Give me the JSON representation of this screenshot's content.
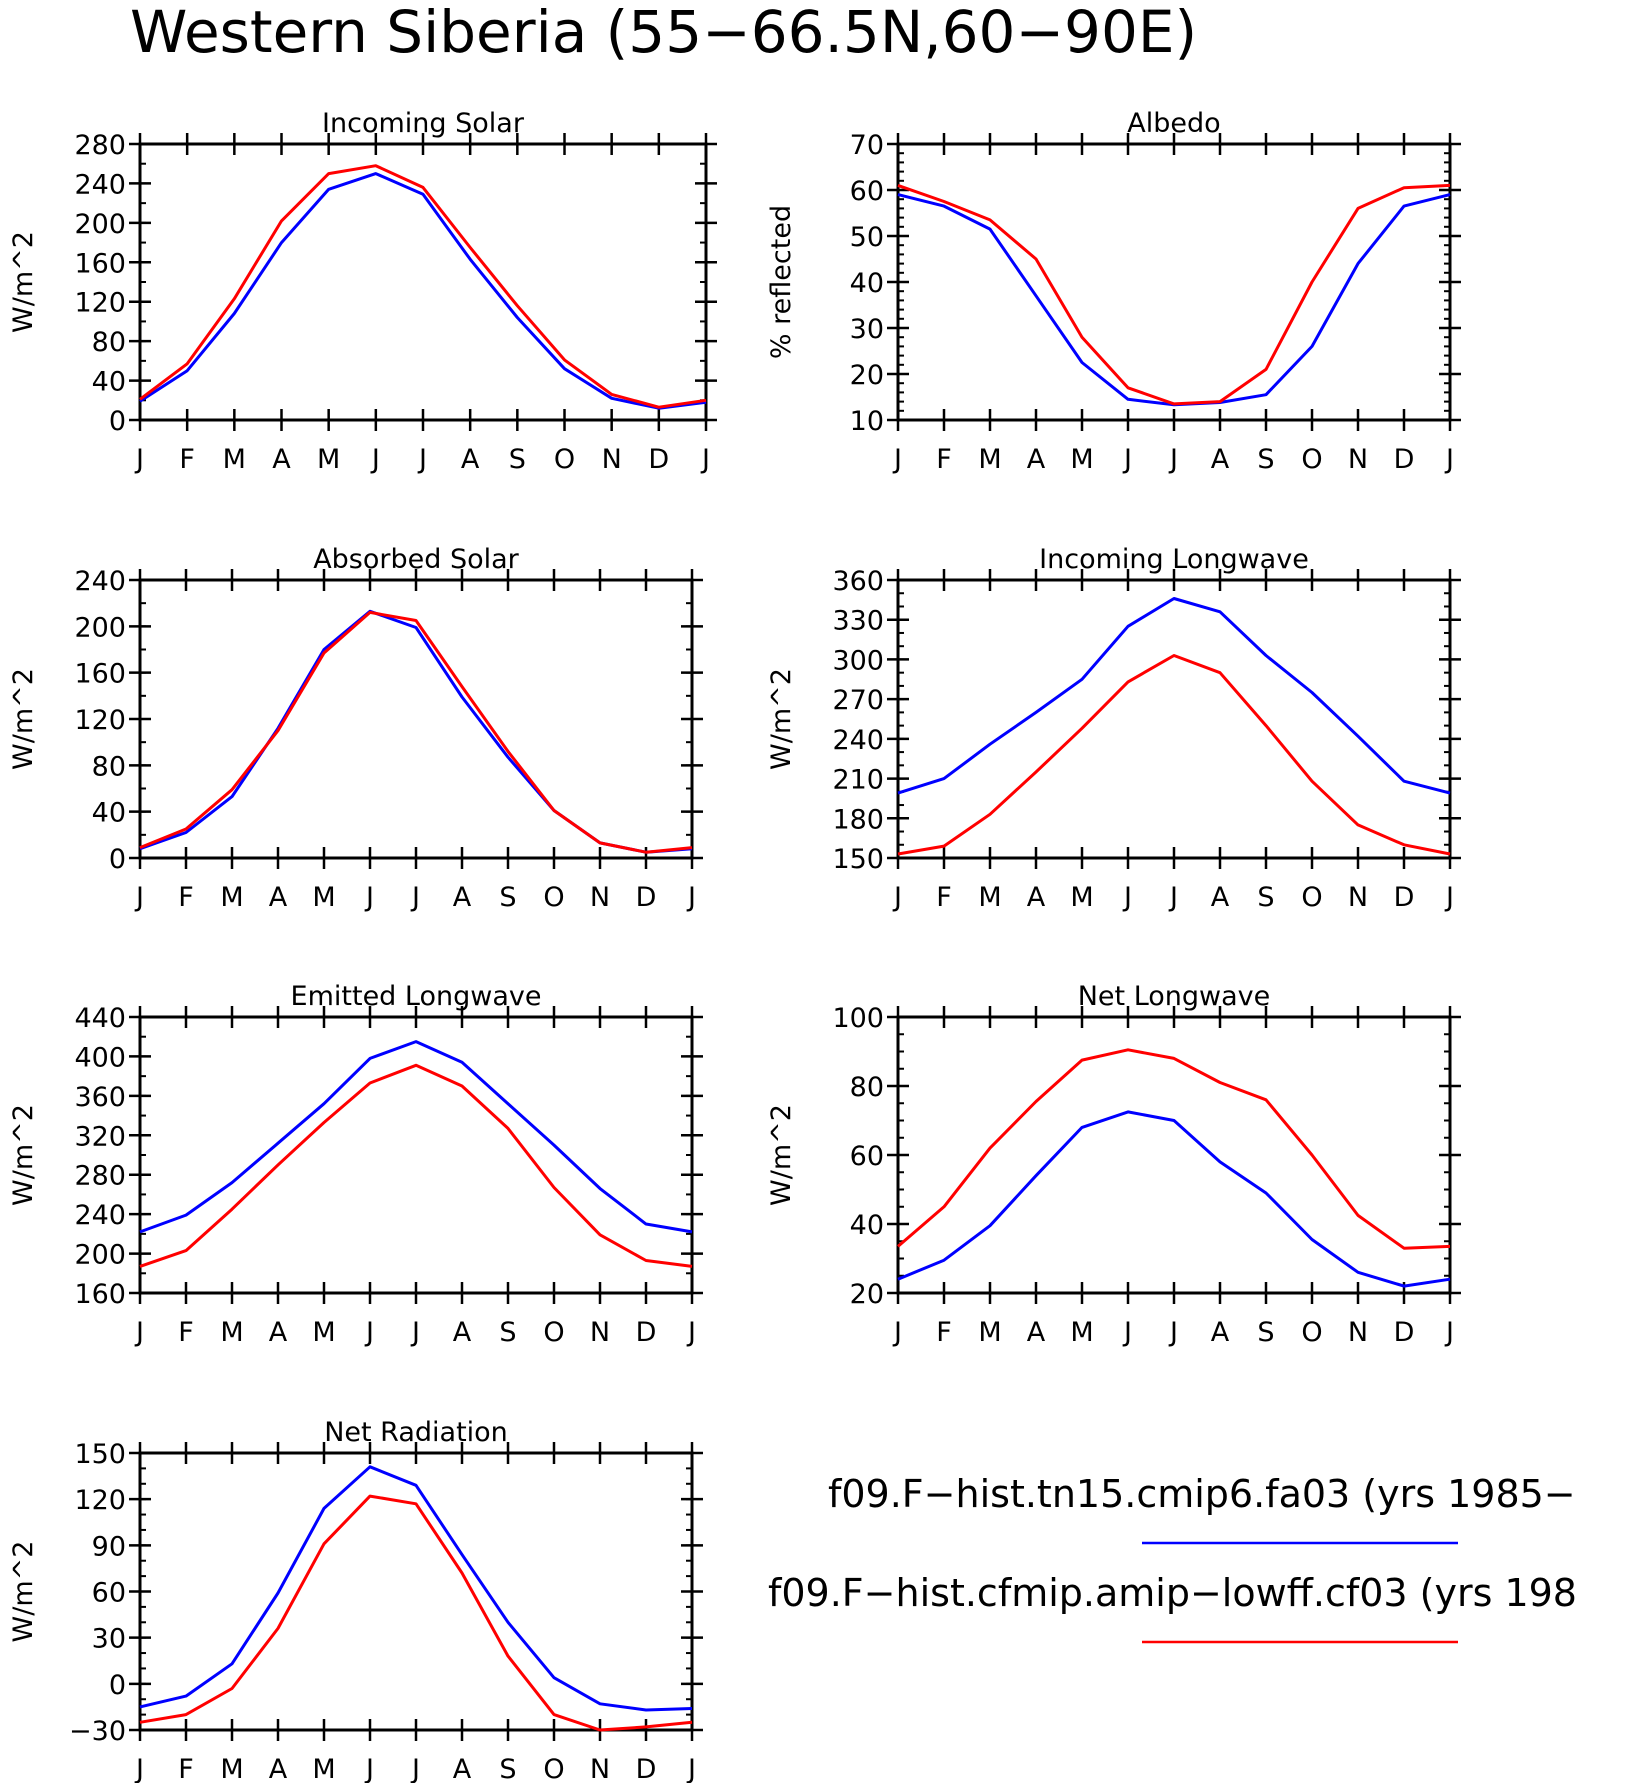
{
  "title": "Western Siberia (55−66.5N,60−90E)",
  "series_style": [
    {
      "color": "#0000ff"
    },
    {
      "color": "#ff0000"
    }
  ],
  "legend": [
    {
      "label": "f09.F−hist.tn15.cmip6.fa03 (yrs 1985−",
      "color": "#0000ff"
    },
    {
      "label": "f09.F−hist.cfmip.amip−lowff.cf03 (yrs 198",
      "color": "#ff0000"
    }
  ],
  "chart_data": [
    {
      "type": "line",
      "title": "Incoming Solar",
      "ylabel": "W/m^2",
      "x": [
        "J",
        "F",
        "M",
        "A",
        "M",
        "J",
        "J",
        "A",
        "S",
        "O",
        "N",
        "D",
        "J"
      ],
      "ylim": [
        0,
        280
      ],
      "yticks": [
        0,
        40,
        80,
        120,
        160,
        200,
        240,
        280
      ],
      "minor_step": 20,
      "series": [
        {
          "values": [
            19,
            50,
            108,
            180,
            234,
            250,
            229,
            163,
            104,
            52,
            22,
            12,
            18
          ]
        },
        {
          "values": [
            21,
            57,
            123,
            202,
            250,
            258,
            236,
            175,
            116,
            61,
            26,
            13,
            20
          ]
        }
      ]
    },
    {
      "type": "line",
      "title": "Albedo",
      "ylabel": "% reflected",
      "x": [
        "J",
        "F",
        "M",
        "A",
        "M",
        "J",
        "J",
        "A",
        "S",
        "O",
        "N",
        "D",
        "J"
      ],
      "ylim": [
        10,
        70
      ],
      "yticks": [
        10,
        20,
        30,
        40,
        50,
        60,
        70
      ],
      "minor_step": 2,
      "series": [
        {
          "values": [
            59,
            56.5,
            51.5,
            37,
            22.5,
            14.5,
            13.3,
            13.8,
            15.5,
            26,
            44,
            56.5,
            59
          ]
        },
        {
          "values": [
            61,
            57.5,
            53.5,
            45,
            28,
            17,
            13.5,
            14,
            21,
            40,
            56,
            60.5,
            61
          ]
        }
      ]
    },
    {
      "type": "line",
      "title": "Absorbed Solar",
      "ylabel": "W/m^2",
      "x": [
        "J",
        "F",
        "M",
        "A",
        "M",
        "J",
        "J",
        "A",
        "S",
        "O",
        "N",
        "D",
        "J"
      ],
      "ylim": [
        0,
        240
      ],
      "yticks": [
        0,
        40,
        80,
        120,
        160,
        200,
        240
      ],
      "minor_step": 20,
      "series": [
        {
          "values": [
            8,
            22,
            53,
            112,
            180,
            213,
            199,
            139,
            87,
            41,
            13,
            5,
            8
          ]
        },
        {
          "values": [
            9,
            25,
            59,
            110,
            177,
            212,
            205,
            148,
            92,
            41,
            13,
            5,
            9
          ]
        }
      ]
    },
    {
      "type": "line",
      "title": "Incoming Longwave",
      "ylabel": "W/m^2",
      "x": [
        "J",
        "F",
        "M",
        "A",
        "M",
        "J",
        "J",
        "A",
        "S",
        "O",
        "N",
        "D",
        "J"
      ],
      "ylim": [
        150,
        360
      ],
      "yticks": [
        150,
        180,
        210,
        240,
        270,
        300,
        330,
        360
      ],
      "minor_step": 10,
      "series": [
        {
          "values": [
            199,
            210,
            236,
            260,
            285,
            325,
            346,
            336,
            303,
            275,
            242,
            208,
            199
          ]
        },
        {
          "values": [
            153,
            159,
            183,
            215,
            248,
            283,
            303,
            290,
            250,
            208,
            175,
            160,
            153
          ]
        }
      ]
    },
    {
      "type": "line",
      "title": "Emitted Longwave",
      "ylabel": "W/m^2",
      "x": [
        "J",
        "F",
        "M",
        "A",
        "M",
        "J",
        "J",
        "A",
        "S",
        "O",
        "N",
        "D",
        "J"
      ],
      "ylim": [
        160,
        440
      ],
      "yticks": [
        160,
        200,
        240,
        280,
        320,
        360,
        400,
        440
      ],
      "minor_step": 20,
      "series": [
        {
          "values": [
            222,
            239,
            272,
            312,
            352,
            398,
            415,
            394,
            352,
            310,
            266,
            230,
            222
          ]
        },
        {
          "values": [
            187,
            203,
            245,
            290,
            333,
            373,
            391,
            370,
            327,
            267,
            219,
            193,
            187
          ]
        }
      ]
    },
    {
      "type": "line",
      "title": "Net Longwave",
      "ylabel": "W/m^2",
      "x": [
        "J",
        "F",
        "M",
        "A",
        "M",
        "J",
        "J",
        "A",
        "S",
        "O",
        "N",
        "D",
        "J"
      ],
      "ylim": [
        20,
        100
      ],
      "yticks": [
        20,
        40,
        60,
        80,
        100
      ],
      "minor_step": 5,
      "series": [
        {
          "values": [
            24,
            29.5,
            39.5,
            54,
            68,
            72.5,
            70,
            58,
            49,
            35.5,
            26,
            22,
            24
          ]
        },
        {
          "values": [
            33.5,
            45,
            62,
            75.5,
            87.5,
            90.5,
            88,
            81,
            76,
            60,
            42.5,
            33,
            33.5
          ]
        }
      ]
    },
    {
      "type": "line",
      "title": "Net Radiation",
      "ylabel": "W/m^2",
      "x": [
        "J",
        "F",
        "M",
        "A",
        "M",
        "J",
        "J",
        "A",
        "S",
        "O",
        "N",
        "D",
        "J"
      ],
      "ylim": [
        -30,
        150
      ],
      "yticks": [
        -30,
        0,
        30,
        60,
        90,
        120,
        150
      ],
      "minor_step": 10,
      "series": [
        {
          "values": [
            -15,
            -8,
            13,
            59,
            114,
            141,
            129,
            84,
            40,
            4,
            -13,
            -17,
            -16
          ]
        },
        {
          "values": [
            -25,
            -20,
            -3,
            36,
            91,
            122,
            117,
            72,
            18,
            -20,
            -30,
            -28,
            -25
          ]
        }
      ]
    }
  ]
}
